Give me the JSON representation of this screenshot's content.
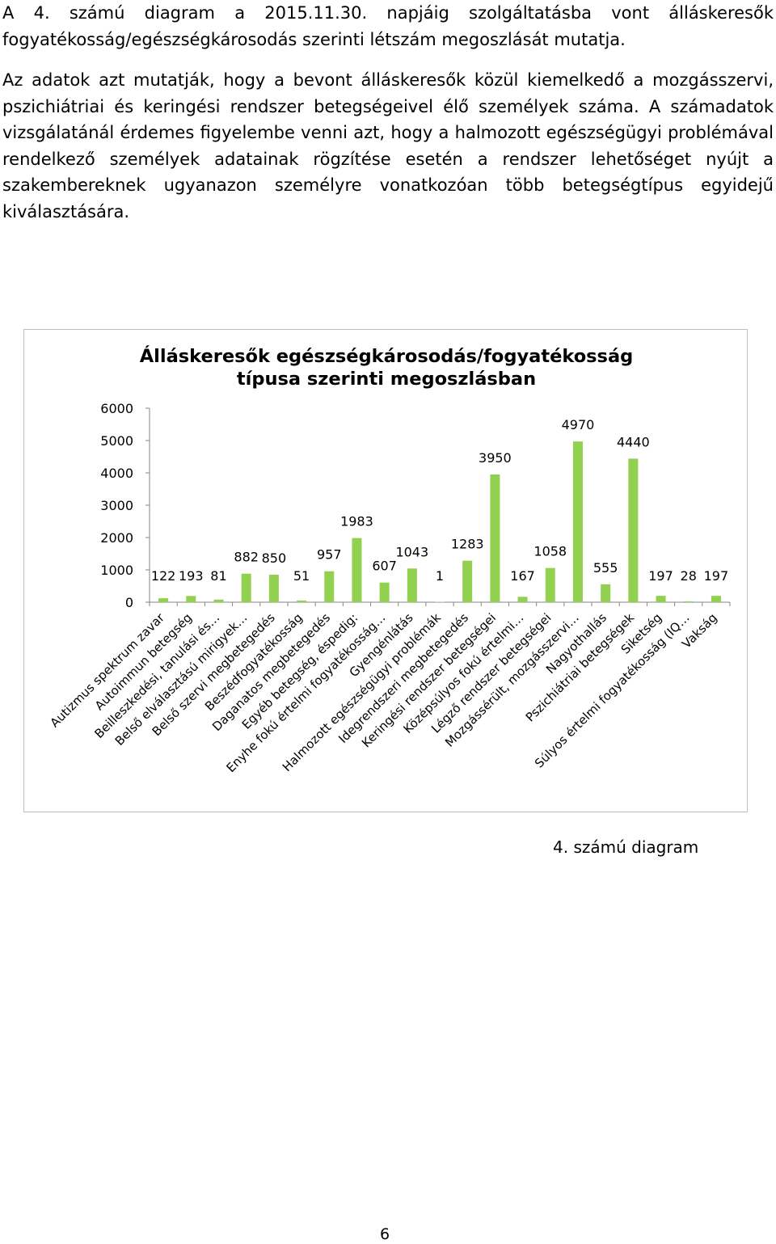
{
  "text": {
    "p1": "A 4. számú diagram a 2015.11.30. napjáig szolgáltatásba vont álláskeresők fogyatékosság/egészségkárosodás szerinti létszám megoszlását mutatja.",
    "p2": "Az adatok azt mutatják, hogy a bevont álláskeresők közül kiemelkedő a mozgásszervi, pszichiátriai és keringési rendszer betegségeivel élő személyek száma. A számadatok vizsgálatánál érdemes figyelembe venni azt, hogy a halmozott egészségügyi problémával rendelkező személyek adatainak rögzítése esetén a rendszer lehetőséget nyújt a szakembereknek ugyanazon személyre vonatkozóan több betegségtípus egyidejű kiválasztására.",
    "caption": "4. számú diagram",
    "page_number": "6"
  },
  "chart_data": {
    "type": "bar",
    "title_lines": [
      "Álláskeresők egészségkárosodás/fogyatékosság",
      "típusa szerinti megoszlásban"
    ],
    "categories": [
      "Autizmus spektrum zavar",
      "Autoimmun betegség",
      "Beilleszkedési, tanulási és…",
      "Belső elválasztású mirigyek…",
      "Belső szervi megbetegedés",
      "Beszédfogyatékosság",
      "Daganatos megbetegedés",
      "Egyéb betegség, éspedig:",
      "Enyhe fokú értelmi fogyatékosság…",
      "Gyengénlátás",
      "Halmozott egészségügyi problémák",
      "Idegrendszeri megbetegedés",
      "Keringési rendszer betegségei",
      "Középsúlyos fokú értelmi…",
      "Légző rendszer betegségei",
      "Mozgássérült, mozgásszervi…",
      "Nagyothallás",
      "Pszichiátriai betegségek",
      "Siketség",
      "Súlyos értelmi fogyatékosság (IQ…",
      "Vakság"
    ],
    "values": [
      122,
      193,
      81,
      882,
      850,
      51,
      957,
      1983,
      607,
      1043,
      1,
      1283,
      3950,
      167,
      1058,
      4970,
      555,
      4440,
      197,
      28,
      197
    ],
    "yticks": [
      "0",
      "1000",
      "2000",
      "3000",
      "4000",
      "5000",
      "6000"
    ],
    "ylim": [
      0,
      6000
    ],
    "bar_color": "#92d050",
    "axis_color": "#868686",
    "grid": false,
    "legend": false
  }
}
